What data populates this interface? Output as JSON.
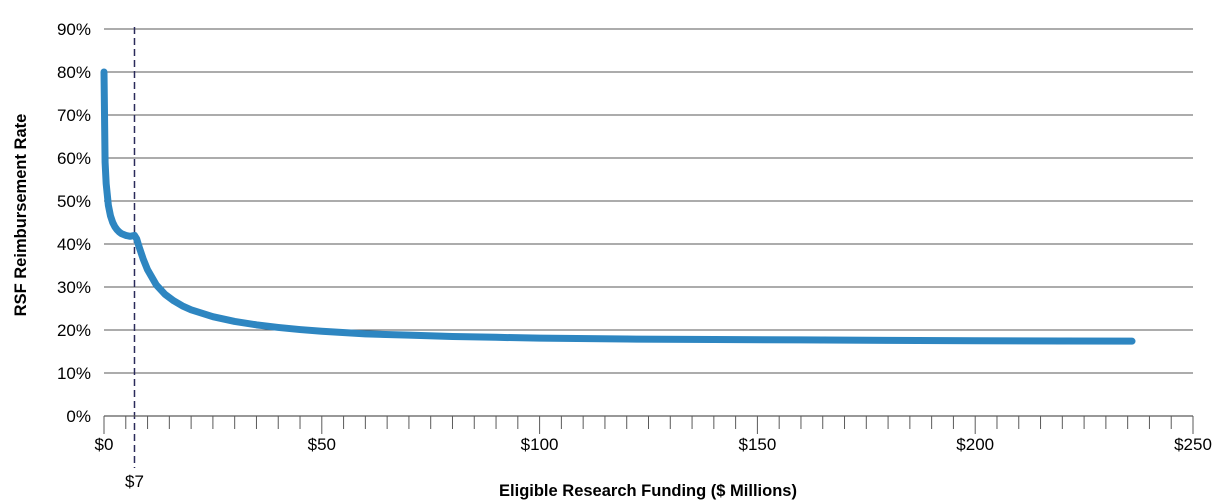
{
  "chart_data": {
    "type": "line",
    "title": "",
    "xlabel": "Eligible Research Funding ($ Millions)",
    "ylabel": "RSF Reimbursement Rate",
    "xlim": [
      0,
      250
    ],
    "ylim": [
      0,
      90
    ],
    "x_ticks": [
      0,
      50,
      100,
      150,
      200,
      250
    ],
    "x_tick_labels": [
      "$0",
      "$50",
      "$100",
      "$150",
      "$200",
      "$250"
    ],
    "x_minor_tick_step": 5,
    "y_ticks": [
      0,
      10,
      20,
      30,
      40,
      50,
      60,
      70,
      80,
      90
    ],
    "y_tick_labels": [
      "0%",
      "10%",
      "20%",
      "30%",
      "40%",
      "50%",
      "60%",
      "70%",
      "80%",
      "90%"
    ],
    "grid": "horizontal",
    "legend": "none",
    "reference_line": {
      "x": 7,
      "label": "$7",
      "style": "dashed",
      "color": "#2a2a5a"
    },
    "series": [
      {
        "color": "#2e86c1",
        "x": [
          0,
          0.25,
          0.5,
          1,
          1.5,
          2,
          2.5,
          3,
          3.5,
          4,
          5,
          6,
          7,
          7.5,
          8,
          9,
          10,
          12,
          14,
          16,
          18,
          20,
          25,
          30,
          35,
          40,
          45,
          50,
          60,
          70,
          80,
          90,
          100,
          120,
          140,
          160,
          180,
          200,
          220,
          236
        ],
        "y": [
          80,
          59,
          54,
          49,
          46.5,
          45,
          44,
          43.3,
          42.8,
          42.4,
          42,
          41.8,
          42,
          41.2,
          39.5,
          36.5,
          34,
          30.5,
          28.3,
          26.8,
          25.6,
          24.7,
          23.1,
          22,
          21.2,
          20.6,
          20.1,
          19.7,
          19.1,
          18.8,
          18.5,
          18.3,
          18.1,
          17.9,
          17.8,
          17.7,
          17.6,
          17.5,
          17.45,
          17.4
        ]
      }
    ]
  }
}
